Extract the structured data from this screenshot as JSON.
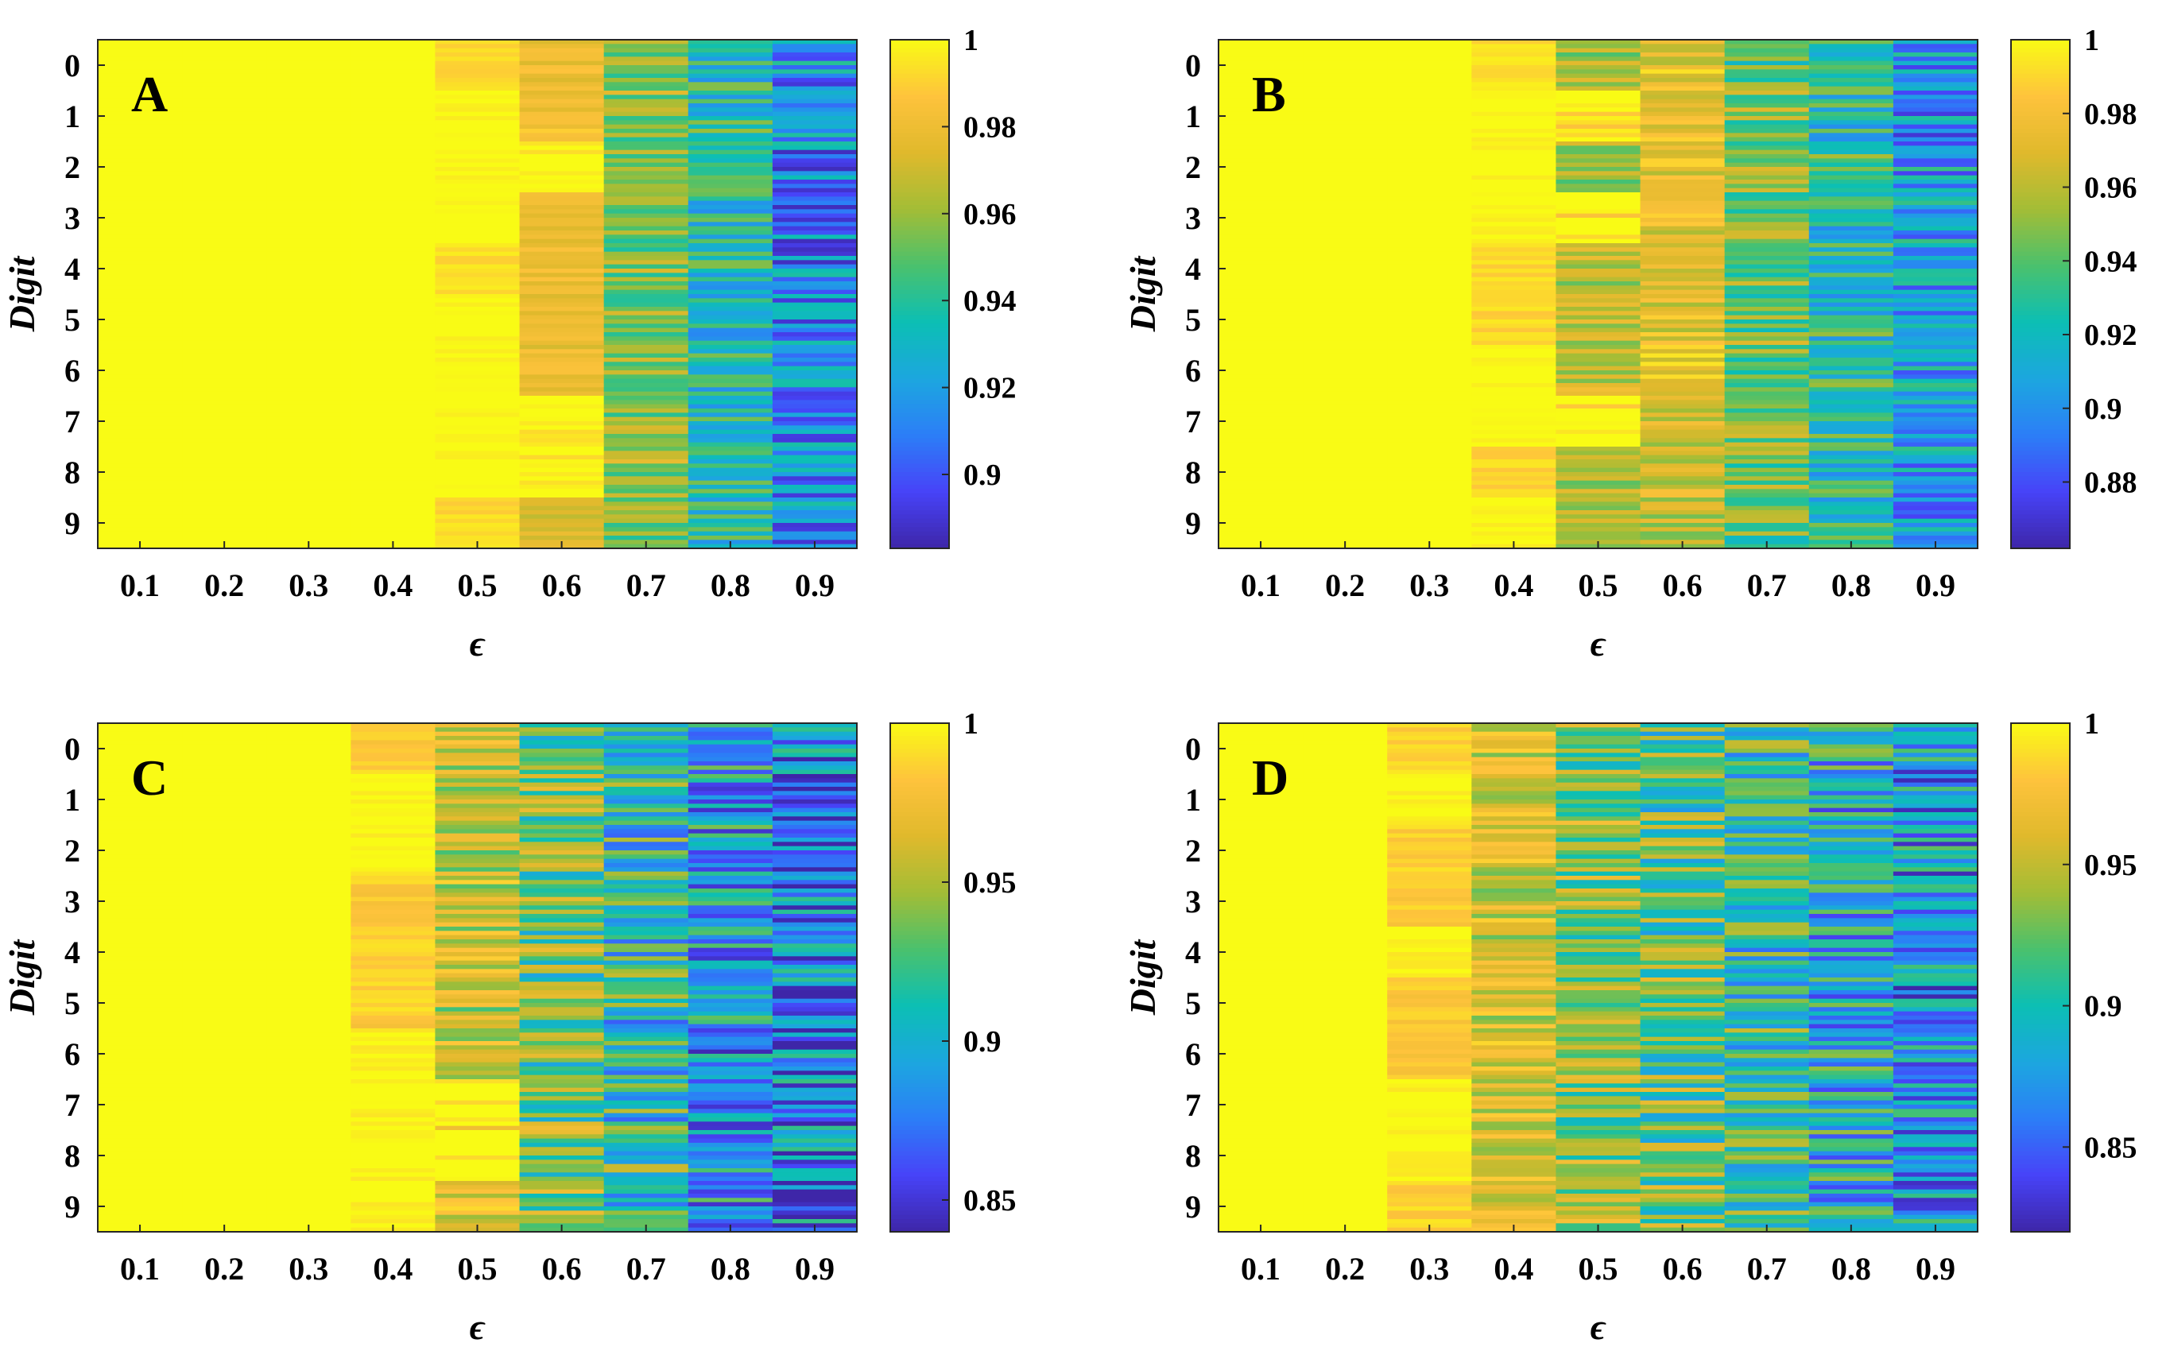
{
  "figure": {
    "colormap": [
      "#3e26a8",
      "#4743f8",
      "#2c7ef7",
      "#1ca6df",
      "#0cbfb4",
      "#4ac16d",
      "#a3bd36",
      "#e0b92c",
      "#fec33c",
      "#f9fb15"
    ]
  },
  "chart_data": [
    {
      "type": "heatmap",
      "panel": "A",
      "title": "",
      "xlabel": "ϵ",
      "ylabel": "Digit",
      "x_ticks": [
        "0.1",
        "0.2",
        "0.3",
        "0.4",
        "0.5",
        "0.6",
        "0.7",
        "0.8",
        "0.9"
      ],
      "y_ticks": [
        "0",
        "1",
        "2",
        "3",
        "4",
        "5",
        "6",
        "7",
        "8",
        "9"
      ],
      "clim": [
        0.883,
        1.0
      ],
      "colorbar_ticks": [
        "1",
        "0.98",
        "0.96",
        "0.94",
        "0.92",
        "0.9"
      ],
      "colorbar_tick_values": [
        1.0,
        0.98,
        0.96,
        0.94,
        0.92,
        0.9
      ],
      "column_mean_values": [
        [
          1.0,
          1.0,
          1.0,
          1.0,
          0.992,
          0.98,
          0.955,
          0.935,
          0.915
        ],
        [
          1.0,
          1.0,
          1.0,
          1.0,
          1.0,
          0.982,
          0.958,
          0.938,
          0.918
        ],
        [
          1.0,
          1.0,
          1.0,
          1.0,
          1.0,
          1.0,
          0.956,
          0.935,
          0.912
        ],
        [
          1.0,
          1.0,
          1.0,
          1.0,
          1.0,
          0.978,
          0.955,
          0.933,
          0.912
        ],
        [
          1.0,
          1.0,
          1.0,
          1.0,
          0.993,
          0.979,
          0.956,
          0.935,
          0.913
        ],
        [
          1.0,
          1.0,
          1.0,
          1.0,
          1.0,
          0.98,
          0.957,
          0.934,
          0.912
        ],
        [
          1.0,
          1.0,
          1.0,
          1.0,
          1.0,
          0.978,
          0.956,
          0.934,
          0.911
        ],
        [
          1.0,
          1.0,
          1.0,
          1.0,
          1.0,
          1.0,
          0.958,
          0.935,
          0.913
        ],
        [
          1.0,
          1.0,
          1.0,
          1.0,
          1.0,
          1.0,
          0.96,
          0.936,
          0.915
        ],
        [
          1.0,
          1.0,
          1.0,
          1.0,
          0.992,
          0.975,
          0.955,
          0.935,
          0.914
        ]
      ],
      "spread": [
        0,
        0,
        0,
        0,
        0.004,
        0.008,
        0.018,
        0.022,
        0.026
      ]
    },
    {
      "type": "heatmap",
      "panel": "B",
      "title": "",
      "xlabel": "ϵ",
      "ylabel": "Digit",
      "x_ticks": [
        "0.1",
        "0.2",
        "0.3",
        "0.4",
        "0.5",
        "0.6",
        "0.7",
        "0.8",
        "0.9"
      ],
      "y_ticks": [
        "0",
        "1",
        "2",
        "3",
        "4",
        "5",
        "6",
        "7",
        "8",
        "9"
      ],
      "clim": [
        0.862,
        1.0
      ],
      "colorbar_ticks": [
        "1",
        "0.98",
        "0.96",
        "0.94",
        "0.92",
        "0.9",
        "0.88"
      ],
      "colorbar_tick_values": [
        1.0,
        0.98,
        0.96,
        0.94,
        0.92,
        0.9,
        0.88
      ],
      "column_mean_values": [
        [
          1.0,
          1.0,
          1.0,
          0.992,
          0.955,
          0.975,
          0.94,
          0.925,
          0.905
        ],
        [
          1.0,
          1.0,
          1.0,
          1.0,
          1.0,
          0.975,
          0.945,
          0.925,
          0.9
        ],
        [
          1.0,
          1.0,
          1.0,
          1.0,
          0.95,
          0.972,
          0.95,
          0.928,
          0.905
        ],
        [
          1.0,
          1.0,
          1.0,
          1.0,
          1.0,
          0.973,
          0.945,
          0.925,
          0.905
        ],
        [
          1.0,
          1.0,
          1.0,
          0.99,
          0.958,
          0.97,
          0.948,
          0.92,
          0.902
        ],
        [
          1.0,
          1.0,
          1.0,
          0.99,
          0.96,
          0.972,
          0.945,
          0.925,
          0.905
        ],
        [
          1.0,
          1.0,
          1.0,
          1.0,
          0.962,
          0.978,
          0.945,
          0.926,
          0.905
        ],
        [
          1.0,
          1.0,
          1.0,
          1.0,
          1.0,
          0.968,
          0.945,
          0.925,
          0.903
        ],
        [
          1.0,
          1.0,
          1.0,
          0.99,
          0.955,
          0.965,
          0.945,
          0.925,
          0.905
        ],
        [
          1.0,
          1.0,
          1.0,
          1.0,
          0.955,
          0.962,
          0.942,
          0.922,
          0.9
        ]
      ],
      "spread": [
        0,
        0,
        0,
        0.005,
        0.018,
        0.018,
        0.025,
        0.028,
        0.03
      ]
    },
    {
      "type": "heatmap",
      "panel": "C",
      "title": "",
      "xlabel": "ϵ",
      "ylabel": "Digit",
      "x_ticks": [
        "0.1",
        "0.2",
        "0.3",
        "0.4",
        "0.5",
        "0.6",
        "0.7",
        "0.8",
        "0.9"
      ],
      "y_ticks": [
        "0",
        "1",
        "2",
        "3",
        "4",
        "5",
        "6",
        "7",
        "8",
        "9"
      ],
      "clim": [
        0.84,
        1.0
      ],
      "colorbar_ticks": [
        "1",
        "0.95",
        "0.9",
        "0.85"
      ],
      "colorbar_tick_values": [
        1.0,
        0.95,
        0.9,
        0.85
      ],
      "column_mean_values": [
        [
          1.0,
          1.0,
          1.0,
          0.985,
          0.955,
          0.93,
          0.91,
          0.89,
          0.875
        ],
        [
          1.0,
          1.0,
          1.0,
          1.0,
          0.955,
          0.932,
          0.912,
          0.893,
          0.875
        ],
        [
          1.0,
          1.0,
          1.0,
          1.0,
          0.955,
          0.93,
          0.912,
          0.893,
          0.876
        ],
        [
          1.0,
          1.0,
          1.0,
          0.983,
          0.958,
          0.93,
          0.91,
          0.89,
          0.875
        ],
        [
          1.0,
          1.0,
          1.0,
          0.985,
          0.958,
          0.932,
          0.912,
          0.89,
          0.873
        ],
        [
          1.0,
          1.0,
          1.0,
          0.985,
          0.955,
          0.93,
          0.91,
          0.89,
          0.873
        ],
        [
          1.0,
          1.0,
          1.0,
          1.0,
          0.96,
          0.932,
          0.91,
          0.89,
          0.873
        ],
        [
          1.0,
          1.0,
          1.0,
          1.0,
          1.0,
          0.935,
          0.912,
          0.893,
          0.875
        ],
        [
          1.0,
          1.0,
          1.0,
          1.0,
          1.0,
          0.935,
          0.915,
          0.893,
          0.876
        ],
        [
          1.0,
          1.0,
          1.0,
          1.0,
          0.965,
          0.94,
          0.915,
          0.895,
          0.878
        ]
      ],
      "spread": [
        0,
        0,
        0,
        0.008,
        0.03,
        0.04,
        0.045,
        0.048,
        0.05
      ]
    },
    {
      "type": "heatmap",
      "panel": "D",
      "title": "",
      "xlabel": "ϵ",
      "ylabel": "Digit",
      "x_ticks": [
        "0.1",
        "0.2",
        "0.3",
        "0.4",
        "0.5",
        "0.6",
        "0.7",
        "0.8",
        "0.9"
      ],
      "y_ticks": [
        "0",
        "1",
        "2",
        "3",
        "4",
        "5",
        "6",
        "7",
        "8",
        "9"
      ],
      "clim": [
        0.82,
        1.0
      ],
      "colorbar_ticks": [
        "1",
        "0.95",
        "0.9",
        "0.85"
      ],
      "colorbar_tick_values": [
        1.0,
        0.95,
        0.9,
        0.85
      ],
      "column_mean_values": [
        [
          1.0,
          1.0,
          0.985,
          0.955,
          0.93,
          0.92,
          0.905,
          0.89,
          0.875
        ],
        [
          1.0,
          1.0,
          1.0,
          0.955,
          0.935,
          0.918,
          0.9,
          0.885,
          0.872
        ],
        [
          1.0,
          1.0,
          0.983,
          0.958,
          0.935,
          0.92,
          0.905,
          0.888,
          0.873
        ],
        [
          1.0,
          1.0,
          0.983,
          0.955,
          0.932,
          0.918,
          0.903,
          0.888,
          0.872
        ],
        [
          1.0,
          1.0,
          1.0,
          0.955,
          0.93,
          0.918,
          0.902,
          0.885,
          0.872
        ],
        [
          1.0,
          1.0,
          0.98,
          0.955,
          0.932,
          0.92,
          0.903,
          0.887,
          0.872
        ],
        [
          1.0,
          1.0,
          0.98,
          0.958,
          0.932,
          0.92,
          0.905,
          0.888,
          0.873
        ],
        [
          1.0,
          1.0,
          1.0,
          0.955,
          0.932,
          0.922,
          0.905,
          0.887,
          0.873
        ],
        [
          1.0,
          1.0,
          1.0,
          0.958,
          0.935,
          0.922,
          0.905,
          0.89,
          0.875
        ],
        [
          1.0,
          1.0,
          0.985,
          0.96,
          0.938,
          0.925,
          0.908,
          0.89,
          0.876
        ]
      ],
      "spread": [
        0,
        0,
        0.008,
        0.03,
        0.04,
        0.045,
        0.048,
        0.05,
        0.052
      ]
    }
  ]
}
